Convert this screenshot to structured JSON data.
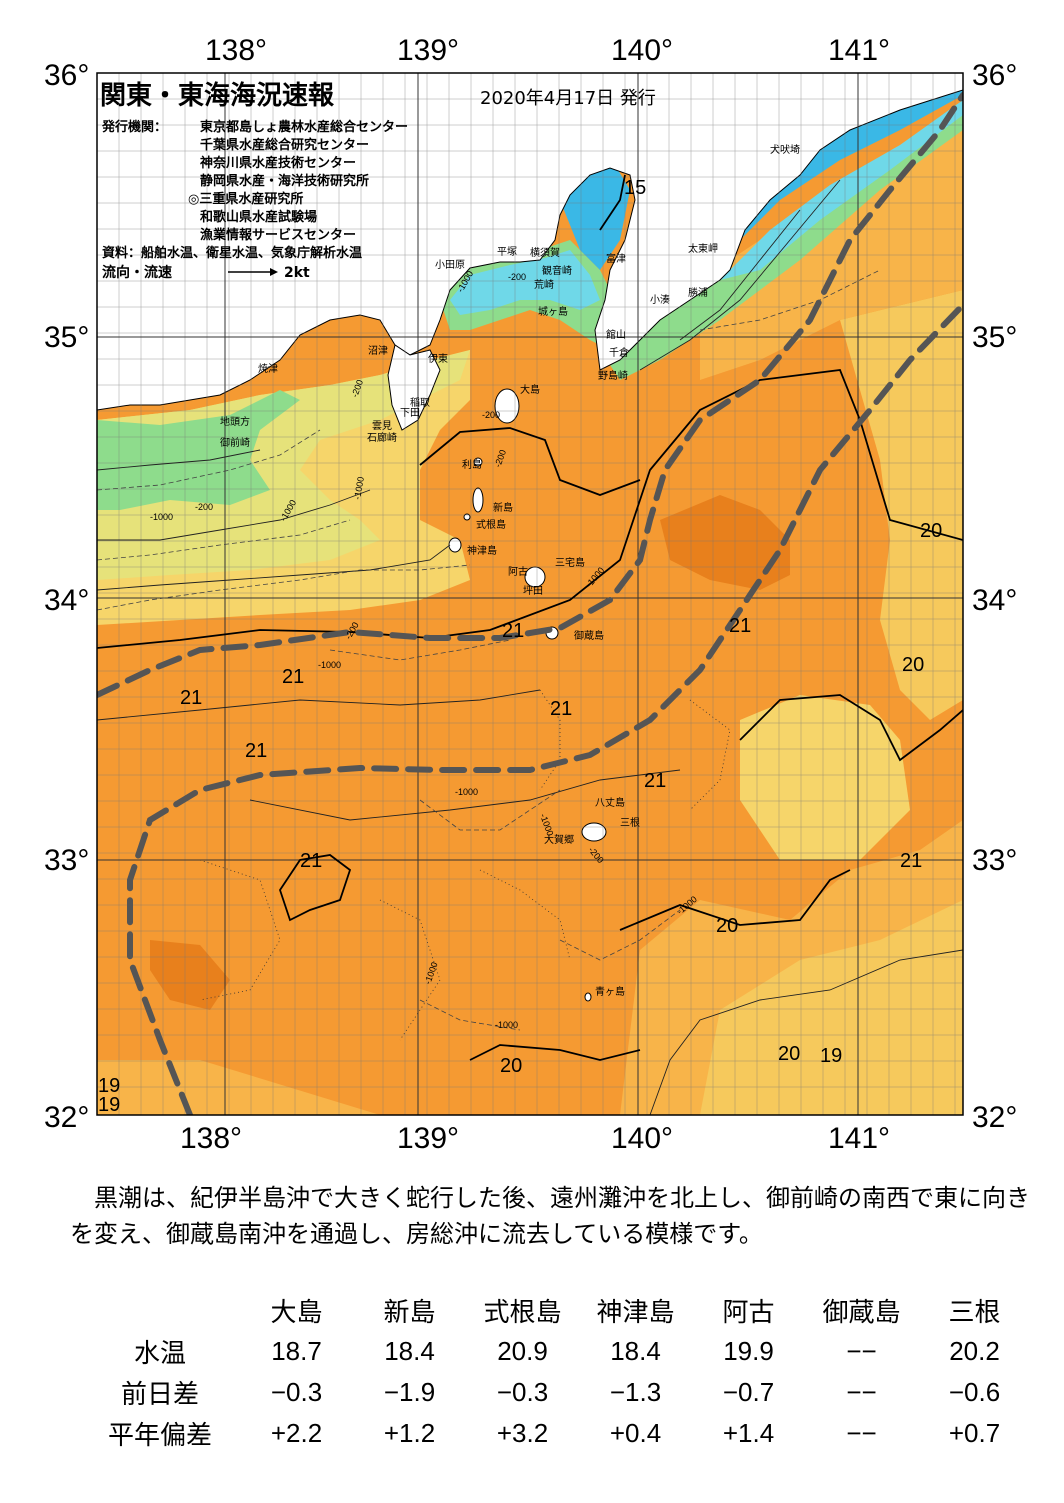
{
  "title": "関東・東海海況速報",
  "issued_date": "2020年4月17日 発行",
  "issuer_label": "発行機関：",
  "issuers": [
    "東京都島しょ農林水産総合センター",
    "千葉県水産総合研究センター",
    "神奈川県水産技術センター",
    "静岡県水産・海洋技術研究所",
    "◎三重県水産研究所",
    "和歌山県水産試験場",
    "漁業情報サービスセンター"
  ],
  "source": "資料：船舶水温、衛星水温、気象庁解析水温",
  "flow_label": "流向・流速",
  "flow_scale": "2kt",
  "axes": {
    "lon_ticks": [
      "138°",
      "139°",
      "140°",
      "141°"
    ],
    "lat_ticks": [
      "36°",
      "35°",
      "34°",
      "33°",
      "32°"
    ]
  },
  "place_names": [
    {
      "name": "犬吠埼"
    },
    {
      "name": "太東岬"
    },
    {
      "name": "勝浦"
    },
    {
      "name": "小湊"
    },
    {
      "name": "小田原"
    },
    {
      "name": "平塚"
    },
    {
      "name": "横須賀"
    },
    {
      "name": "観音崎"
    },
    {
      "name": "荒崎"
    },
    {
      "name": "富津"
    },
    {
      "name": "城ヶ島"
    },
    {
      "name": "館山"
    },
    {
      "name": "千倉"
    },
    {
      "name": "野島崎"
    },
    {
      "name": "沼津"
    },
    {
      "name": "焼津"
    },
    {
      "name": "伊東"
    },
    {
      "name": "大島"
    },
    {
      "name": "稲取"
    },
    {
      "name": "下田"
    },
    {
      "name": "雲見"
    },
    {
      "name": "石廊崎"
    },
    {
      "name": "地頭方"
    },
    {
      "name": "御前崎"
    },
    {
      "name": "利島"
    },
    {
      "name": "新島"
    },
    {
      "name": "式根島"
    },
    {
      "name": "神津島"
    },
    {
      "name": "三宅島"
    },
    {
      "name": "阿古"
    },
    {
      "name": "坪田"
    },
    {
      "name": "御蔵島"
    },
    {
      "name": "八丈島"
    },
    {
      "name": "三根"
    },
    {
      "name": "大賀郷"
    },
    {
      "name": "青ヶ島"
    }
  ],
  "isotherm_labels": [
    "15",
    "20",
    "20",
    "21",
    "21",
    "21",
    "21",
    "21",
    "21",
    "21",
    "21",
    "21",
    "20",
    "20",
    "20",
    "19",
    "19",
    "19",
    "20",
    "21",
    "21"
  ],
  "depth_labels": [
    "-1000",
    "-200",
    "-200",
    "-200",
    "-1000",
    "-1000",
    "-200",
    "-200",
    "-1000",
    "-1000",
    "-1000",
    "-1000",
    "-1000",
    "-200",
    "-1000",
    "-1000",
    "-1000",
    "-200"
  ],
  "colors": {
    "warm_deep": "#e8801c",
    "warm": "#f59a32",
    "warm_light": "#f8b449",
    "yellow": "#f6d56a",
    "yellow_green": "#e6e27a",
    "green": "#8edc8c",
    "cyan": "#6fd8e8",
    "blue": "#3ab8e6",
    "kuroshio_path": "#555555"
  },
  "description": "黒潮は、紀伊半島沖で大きく蛇行した後、遠州灘沖を北上し、御前崎の南西で東に向きを変え、御蔵島南沖を通過し、房総沖に流去している模様です。",
  "table": {
    "columns": [
      "大島",
      "新島",
      "式根島",
      "神津島",
      "阿古",
      "御蔵島",
      "三根"
    ],
    "rows": [
      {
        "label": "水温",
        "values": [
          "18.7",
          "18.4",
          "20.9",
          "18.4",
          "19.9",
          "−−",
          "20.2"
        ]
      },
      {
        "label": "前日差",
        "values": [
          "−0.3",
          "−1.9",
          "−0.3",
          "−1.3",
          "−0.7",
          "−−",
          "−0.6"
        ]
      },
      {
        "label": "平年偏差",
        "values": [
          "+2.2",
          "+1.2",
          "+3.2",
          "+0.4",
          "+1.4",
          "−−",
          "+0.7"
        ]
      }
    ]
  }
}
